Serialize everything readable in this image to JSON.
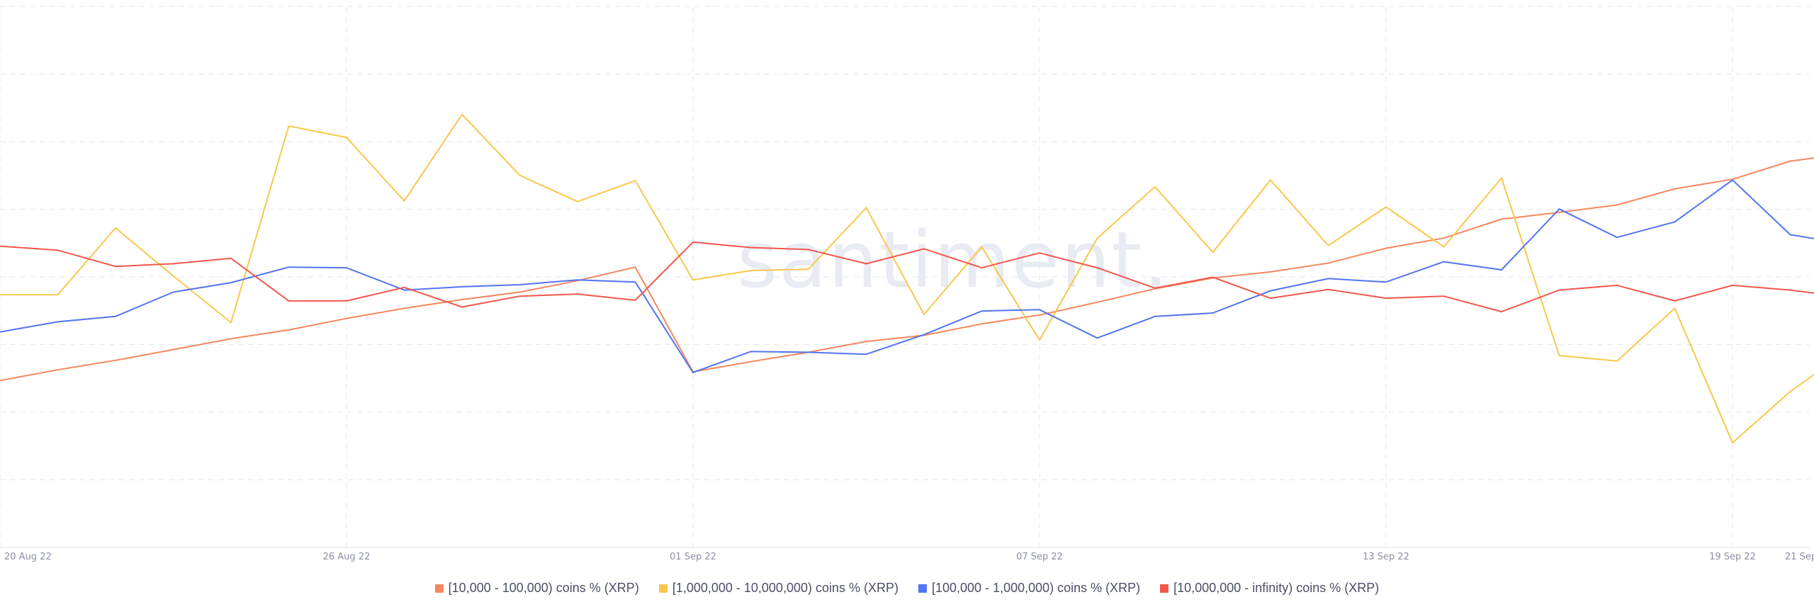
{
  "watermark": "santiment.",
  "chart_data": {
    "type": "line",
    "x": [
      "20 Aug 22",
      "21 Aug 22",
      "22 Aug 22",
      "23 Aug 22",
      "24 Aug 22",
      "25 Aug 22",
      "26 Aug 22",
      "27 Aug 22",
      "28 Aug 22",
      "29 Aug 22",
      "30 Aug 22",
      "31 Aug 22",
      "01 Sep 22",
      "02 Sep 22",
      "03 Sep 22",
      "04 Sep 22",
      "05 Sep 22",
      "06 Sep 22",
      "07 Sep 22",
      "08 Sep 22",
      "09 Sep 22",
      "10 Sep 22",
      "11 Sep 22",
      "12 Sep 22",
      "13 Sep 22",
      "14 Sep 22",
      "15 Sep 22",
      "16 Sep 22",
      "17 Sep 22",
      "18 Sep 22",
      "19 Sep 22",
      "20 Sep 22",
      "21 Sep 22"
    ],
    "x_ticks": [
      "20 Aug 22",
      "26 Aug 22",
      "01 Sep 22",
      "07 Sep 22",
      "13 Sep 22",
      "19 Sep 22",
      "21 Sep 22"
    ],
    "ylim": [
      0,
      8
    ],
    "grid": true,
    "legend_position": "bottom",
    "series": [
      {
        "name": "[10,000 - 100,000) coins % (XRP)",
        "color": "#f5875f",
        "values": [
          2.47,
          2.63,
          2.77,
          2.93,
          3.09,
          3.22,
          3.39,
          3.54,
          3.67,
          3.78,
          3.95,
          4.15,
          2.6,
          2.75,
          2.89,
          3.05,
          3.14,
          3.31,
          3.44,
          3.63,
          3.83,
          3.99,
          4.08,
          4.21,
          4.43,
          4.58,
          4.86,
          4.96,
          5.07,
          5.31,
          5.45,
          5.72,
          5.83
        ]
      },
      {
        "name": "[1,000,000 - 10,000,000) coins % (XRP)",
        "color": "#f8c84c",
        "values": [
          3.74,
          3.74,
          4.73,
          4.02,
          3.33,
          6.24,
          6.07,
          5.13,
          6.41,
          5.51,
          5.12,
          5.43,
          3.96,
          4.1,
          4.12,
          5.03,
          3.45,
          4.45,
          3.07,
          4.58,
          5.34,
          4.37,
          5.44,
          4.47,
          5.04,
          4.45,
          5.47,
          2.84,
          2.76,
          3.54,
          1.55,
          2.31,
          2.91
        ]
      },
      {
        "name": "[100,000  - 1,000,000) coins % (XRP)",
        "color": "#5275f0",
        "values": [
          3.19,
          3.34,
          3.42,
          3.78,
          3.92,
          4.15,
          4.14,
          3.81,
          3.86,
          3.89,
          3.96,
          3.93,
          2.59,
          2.9,
          2.89,
          2.86,
          3.15,
          3.5,
          3.52,
          3.1,
          3.42,
          3.47,
          3.8,
          3.98,
          3.93,
          4.23,
          4.11,
          5.01,
          4.59,
          4.82,
          5.44,
          4.63,
          4.49
        ]
      },
      {
        "name": "[10,000,000 - infinity) coins % (XRP)",
        "color": "#f2574d",
        "values": [
          4.46,
          4.4,
          4.16,
          4.2,
          4.28,
          3.65,
          3.65,
          3.85,
          3.56,
          3.72,
          3.75,
          3.66,
          4.52,
          4.44,
          4.41,
          4.2,
          4.42,
          4.14,
          4.36,
          4.14,
          3.84,
          4.0,
          3.69,
          3.82,
          3.69,
          3.72,
          3.49,
          3.81,
          3.88,
          3.65,
          3.88,
          3.81,
          3.7
        ]
      }
    ]
  }
}
